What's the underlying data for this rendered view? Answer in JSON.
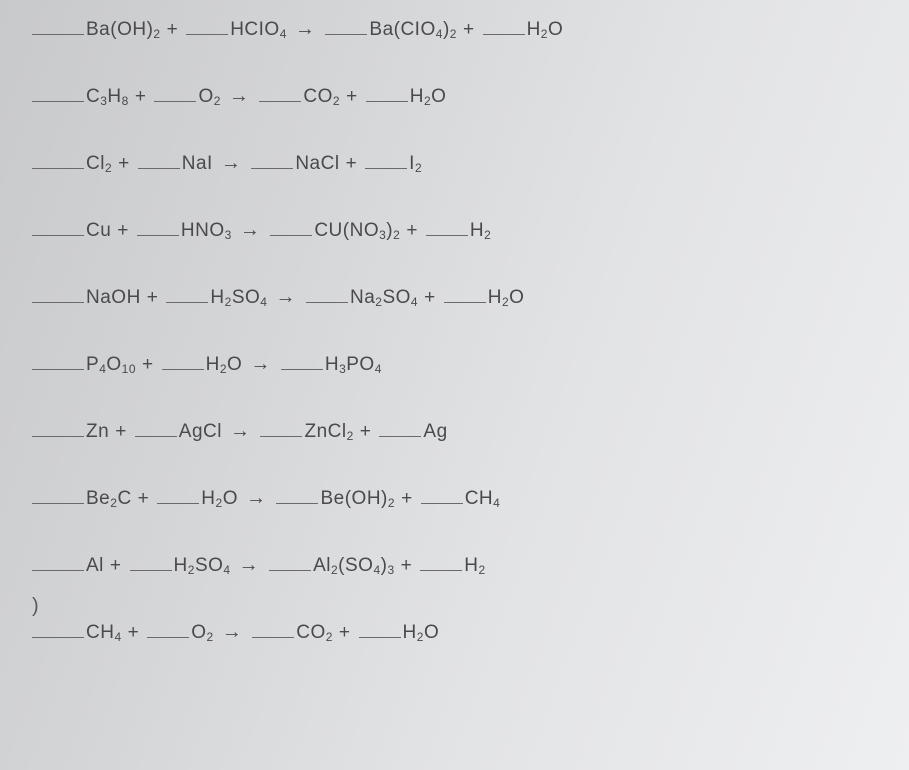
{
  "page": {
    "background_gradient": [
      "#c8c9cb",
      "#d4d5d7",
      "#e2e3e5",
      "#eeeff1"
    ],
    "text_color": "#4a4a4c",
    "font_size": 19,
    "blank_width": 42,
    "row_spacing": 44
  },
  "equations": [
    {
      "reactants": [
        {
          "formula": "Ba(OH)",
          "sub": "2"
        },
        {
          "formula": "HCIO",
          "sub": "4"
        }
      ],
      "products": [
        {
          "formula": "Ba(CIO",
          "sub": "4",
          "tail": ")",
          "tailsub": "2"
        },
        {
          "formula": "H",
          "sub": "2",
          "tail": "O"
        }
      ]
    },
    {
      "reactants": [
        {
          "formula": "C",
          "sub": "3",
          "tail": "H",
          "tailsub": "8"
        },
        {
          "formula": "O",
          "sub": "2"
        }
      ],
      "products": [
        {
          "formula": "CO",
          "sub": "2"
        },
        {
          "formula": "H",
          "sub": "2",
          "tail": "O"
        }
      ]
    },
    {
      "reactants": [
        {
          "formula": "Cl",
          "sub": "2"
        },
        {
          "formula": "NaI"
        }
      ],
      "products": [
        {
          "formula": "NaCl"
        },
        {
          "formula": "I",
          "sub": "2"
        }
      ]
    },
    {
      "reactants": [
        {
          "formula": "Cu"
        },
        {
          "formula": "HNO",
          "sub": "3"
        }
      ],
      "products": [
        {
          "formula": "CU(NO",
          "sub": "3",
          "tail": ")",
          "tailsub": "2"
        },
        {
          "formula": "H",
          "sub": "2"
        }
      ]
    },
    {
      "reactants": [
        {
          "formula": "NaOH"
        },
        {
          "formula": "H",
          "sub": "2",
          "tail": "SO",
          "tailsub": "4"
        }
      ],
      "products": [
        {
          "formula": "Na",
          "sub": "2",
          "tail": "SO",
          "tailsub": "4"
        },
        {
          "formula": "H",
          "sub": "2",
          "tail": "O"
        }
      ]
    },
    {
      "reactants": [
        {
          "formula": "P",
          "sub": "4",
          "tail": "O",
          "tailsub": "10"
        },
        {
          "formula": "H",
          "sub": "2",
          "tail": "O"
        }
      ],
      "products": [
        {
          "formula": "H",
          "sub": "3",
          "tail": "PO",
          "tailsub": "4"
        }
      ]
    },
    {
      "reactants": [
        {
          "formula": "Zn"
        },
        {
          "formula": "AgCl"
        }
      ],
      "products": [
        {
          "formula": "ZnCl",
          "sub": "2"
        },
        {
          "formula": "Ag"
        }
      ]
    },
    {
      "reactants": [
        {
          "formula": "Be",
          "sub": "2",
          "tail": "C"
        },
        {
          "formula": "H",
          "sub": "2",
          "tail": "O"
        }
      ],
      "products": [
        {
          "formula": "Be(OH)",
          "sub": "2"
        },
        {
          "formula": "CH",
          "sub": "4"
        }
      ]
    },
    {
      "reactants": [
        {
          "formula": "Al"
        },
        {
          "formula": "H",
          "sub": "2",
          "tail": "SO",
          "tailsub": "4"
        }
      ],
      "products": [
        {
          "formula": "Al",
          "sub": "2",
          "tail": "(SO",
          "tailsub": "4",
          "extra": ")",
          "extrasub": "3"
        },
        {
          "formula": "H",
          "sub": "2"
        }
      ]
    },
    {
      "reactants": [
        {
          "formula": "CH",
          "sub": "4"
        },
        {
          "formula": "O",
          "sub": "2"
        }
      ],
      "products": [
        {
          "formula": "CO",
          "sub": "2"
        },
        {
          "formula": "H",
          "sub": "2",
          "tail": "O"
        }
      ],
      "paren": ")"
    }
  ],
  "symbols": {
    "plus": "+",
    "arrow": "→"
  }
}
